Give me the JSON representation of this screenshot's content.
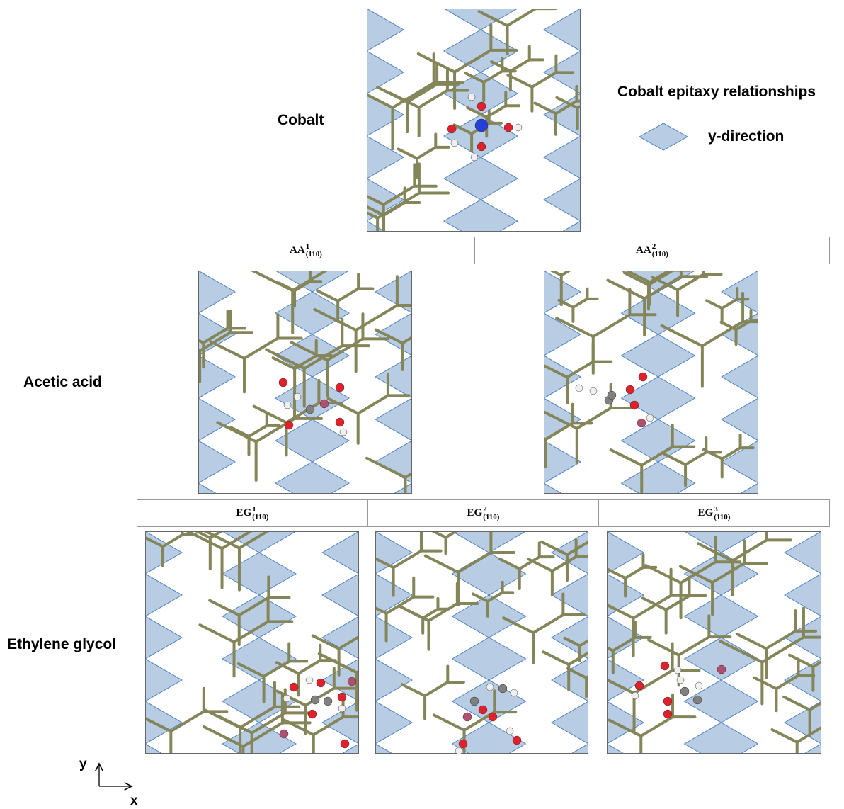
{
  "rows": {
    "cobalt": "Cobalt",
    "acetic_acid": "Acetic acid",
    "ethylene_glycol": "Ethylene glycol"
  },
  "legend": {
    "title": "Cobalt epitaxy relationships",
    "item": "y-direction"
  },
  "headers": {
    "aa": [
      {
        "base": "AA",
        "sup": "1",
        "sub": "(110)"
      },
      {
        "base": "AA",
        "sup": "2",
        "sub": "(110)"
      }
    ],
    "eg": [
      {
        "base": "EG",
        "sup": "1",
        "sub": "(110)"
      },
      {
        "base": "EG",
        "sup": "2",
        "sub": "(110)"
      },
      {
        "base": "EG",
        "sup": "3",
        "sub": "(110)"
      }
    ]
  },
  "axes": {
    "y": "y",
    "x": "x"
  }
}
